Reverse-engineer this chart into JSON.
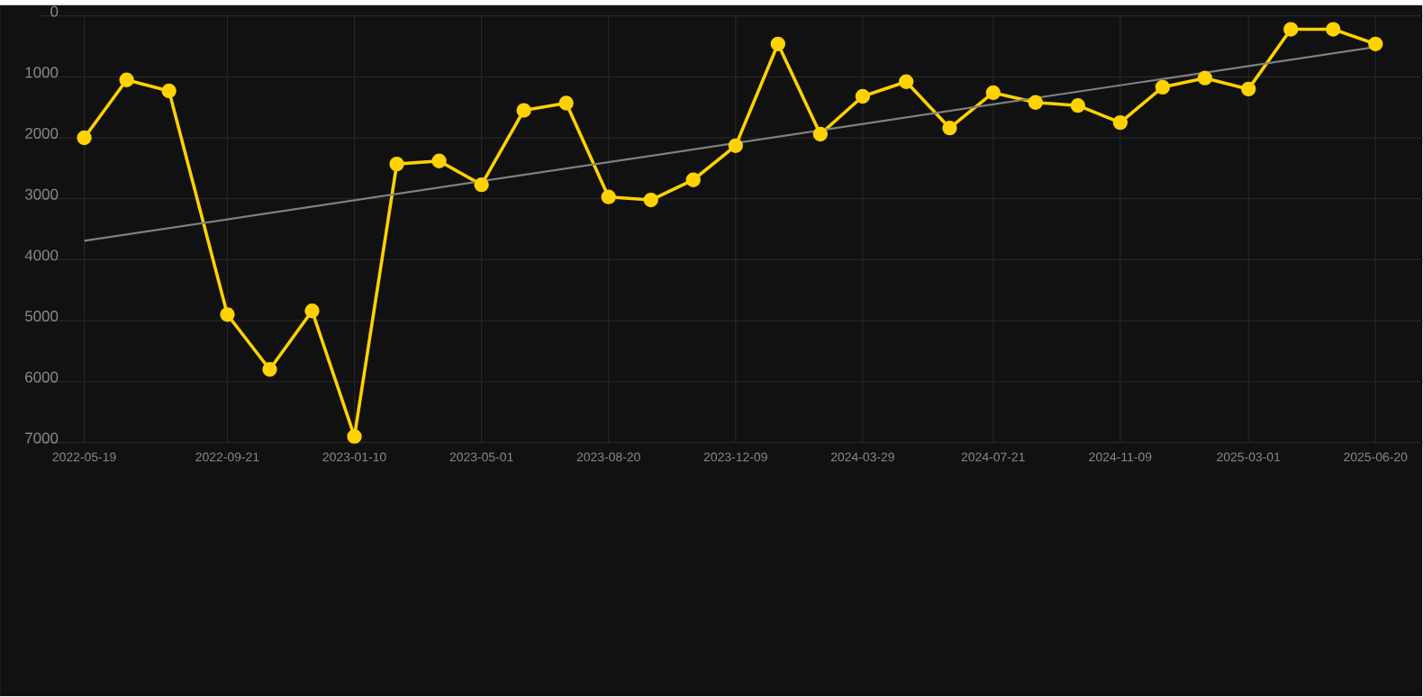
{
  "chart_data": {
    "type": "line",
    "x": [
      "2022-05-19",
      "2022-06-25",
      "2022-08-01",
      "2022-09-21",
      "2022-10-28",
      "2022-12-04",
      "2023-01-10",
      "2023-02-16",
      "2023-03-25",
      "2023-05-01",
      "2023-06-07",
      "2023-07-14",
      "2023-08-20",
      "2023-09-26",
      "2023-11-02",
      "2023-12-09",
      "2024-01-15",
      "2024-02-21",
      "2024-03-29",
      "2024-05-06",
      "2024-06-13",
      "2024-07-21",
      "2024-08-27",
      "2024-10-03",
      "2024-11-09",
      "2024-12-16",
      "2025-01-22",
      "2025-03-01",
      "2025-04-07",
      "2025-05-14",
      "2025-06-20"
    ],
    "series": [
      {
        "color": "#ffd200",
        "values": [
          2000,
          1050,
          1230,
          4900,
          5800,
          4840,
          6900,
          2430,
          2380,
          2770,
          1550,
          1430,
          2970,
          3020,
          2690,
          2130,
          460,
          1940,
          1320,
          1080,
          1840,
          1260,
          1420,
          1470,
          1750,
          1170,
          1020,
          1200,
          220,
          220,
          460
        ]
      },
      {
        "type": "line",
        "color": "#808080",
        "marker": "none",
        "x": [
          "2022-05-19",
          "2025-06-20"
        ],
        "values": [
          3690,
          510
        ]
      }
    ],
    "xlim": [
      "2022-04-10",
      "2025-07-31"
    ],
    "xticks": [
      "2022-05-19",
      "2022-09-21",
      "2023-01-10",
      "2023-05-01",
      "2023-08-20",
      "2023-12-09",
      "2024-03-29",
      "2024-07-21",
      "2024-11-09",
      "2025-03-01",
      "2025-06-20"
    ],
    "ylim": [
      7000,
      0
    ],
    "yticks": [
      0,
      1000,
      2000,
      3000,
      4000,
      5000,
      6000,
      7000
    ],
    "grid": true,
    "marker": "circle"
  }
}
